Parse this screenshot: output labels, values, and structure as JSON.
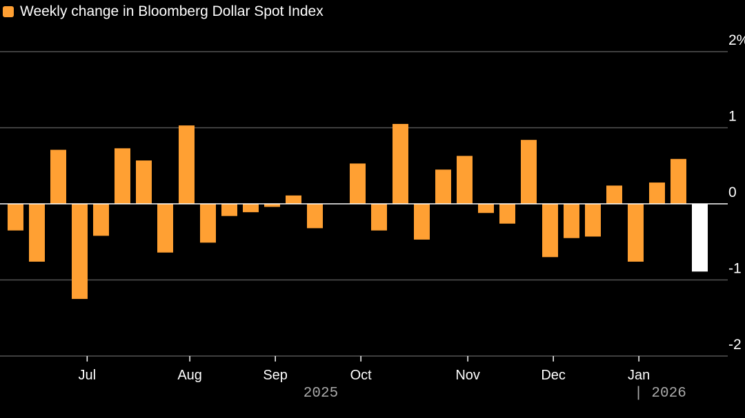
{
  "chart_data": {
    "type": "bar",
    "title": "Weekly change in Bloomberg Dollar Spot Index",
    "legend": [
      {
        "label": "Weekly change in Bloomberg Dollar Spot Index",
        "color": "#ffa033"
      }
    ],
    "y_unit_suffix": "%",
    "ylim": [
      -2,
      2
    ],
    "yticks": [
      2,
      1,
      0,
      -1,
      -2
    ],
    "ytick_labels": [
      "2%",
      "1",
      "0",
      "-1",
      "-2"
    ],
    "xtick_labels": [
      "Jul",
      "Aug",
      "Sep",
      "Oct",
      "Nov",
      "Dec",
      "Jan"
    ],
    "xtick_bar_positions": [
      3.35,
      8.15,
      12.15,
      16.15,
      21.15,
      25.15,
      29.15
    ],
    "year_labels": [
      "2025",
      "| 2026"
    ],
    "colors": {
      "bar": "#ffa033",
      "latest": "#ffffff",
      "grid": "#555555"
    },
    "values": [
      -0.35,
      -0.76,
      0.71,
      -1.25,
      -0.42,
      0.73,
      0.57,
      -0.64,
      1.03,
      -0.51,
      -0.16,
      -0.11,
      -0.04,
      0.11,
      -0.32,
      0,
      0.53,
      -0.35,
      1.05,
      -0.47,
      0.45,
      0.63,
      -0.12,
      -0.26,
      0.84,
      -0.7,
      -0.45,
      -0.43,
      0.24,
      -0.76,
      0.28,
      0.59,
      -0.89
    ],
    "highlight_last": true
  }
}
